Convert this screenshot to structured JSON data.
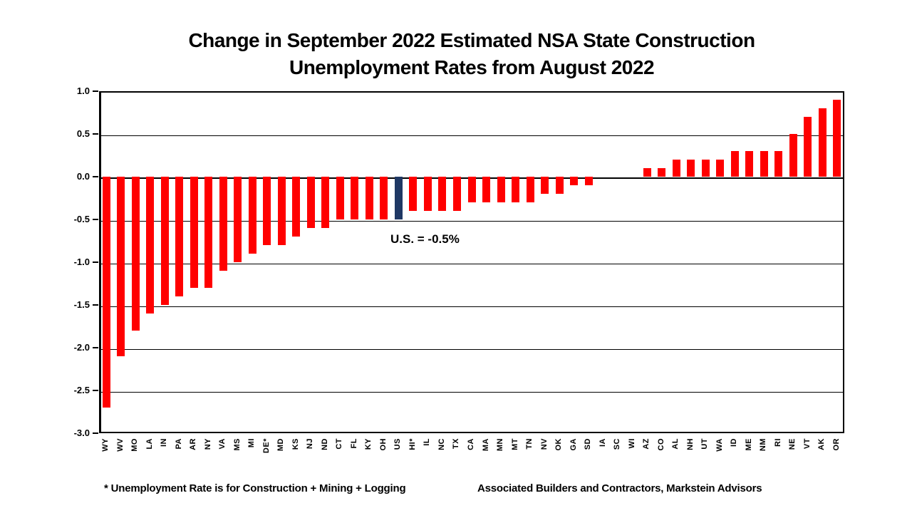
{
  "title": {
    "line1": "Change in September 2022 Estimated NSA State Construction",
    "line2": "Unemployment Rates from August 2022"
  },
  "annotation": "U.S. = -0.5%",
  "footnotes": {
    "left": "* Unemployment Rate is for Construction + Mining + Logging",
    "right": "Associated Builders and Contractors, Markstein Advisors"
  },
  "colors": {
    "bar": "#FF0000",
    "highlight_bar": "#1F3864",
    "axis": "#000000",
    "background": "#FFFFFF"
  },
  "chart_data": {
    "type": "bar",
    "title": "Change in September 2022 Estimated NSA State Construction Unemployment Rates from August 2022",
    "xlabel": "",
    "ylabel": "",
    "ylim": [
      -3.0,
      1.0
    ],
    "ytick_step": 0.5,
    "yticks": [
      1.0,
      0.5,
      0.0,
      -0.5,
      -1.0,
      -1.5,
      -2.0,
      -2.5,
      -3.0
    ],
    "grid": true,
    "legend": false,
    "annotation": "U.S. = -0.5%",
    "highlight_category": "US",
    "categories": [
      "WY",
      "WV",
      "MO",
      "LA",
      "IN",
      "PA",
      "AR",
      "NY",
      "VA",
      "MS",
      "MI",
      "DE*",
      "MD",
      "KS",
      "NJ",
      "ND",
      "CT",
      "FL",
      "KY",
      "OH",
      "US",
      "HI*",
      "IL",
      "NC",
      "TX",
      "CA",
      "MA",
      "MN",
      "MT",
      "TN",
      "NV",
      "OK",
      "GA",
      "SD",
      "IA",
      "SC",
      "WI",
      "AZ",
      "CO",
      "AL",
      "NH",
      "UT",
      "WA",
      "ID",
      "ME",
      "NM",
      "RI",
      "NE",
      "VT",
      "AK",
      "OR"
    ],
    "values": [
      -2.7,
      -2.1,
      -1.8,
      -1.6,
      -1.5,
      -1.4,
      -1.3,
      -1.3,
      -1.1,
      -1.0,
      -0.9,
      -0.8,
      -0.8,
      -0.7,
      -0.6,
      -0.6,
      -0.5,
      -0.5,
      -0.5,
      -0.5,
      -0.5,
      -0.4,
      -0.4,
      -0.4,
      -0.4,
      -0.3,
      -0.3,
      -0.3,
      -0.3,
      -0.3,
      -0.2,
      -0.2,
      -0.1,
      -0.1,
      0.0,
      0.0,
      0.0,
      0.1,
      0.1,
      0.2,
      0.2,
      0.2,
      0.2,
      0.3,
      0.3,
      0.3,
      0.3,
      0.5,
      0.7,
      0.8,
      0.9
    ]
  }
}
